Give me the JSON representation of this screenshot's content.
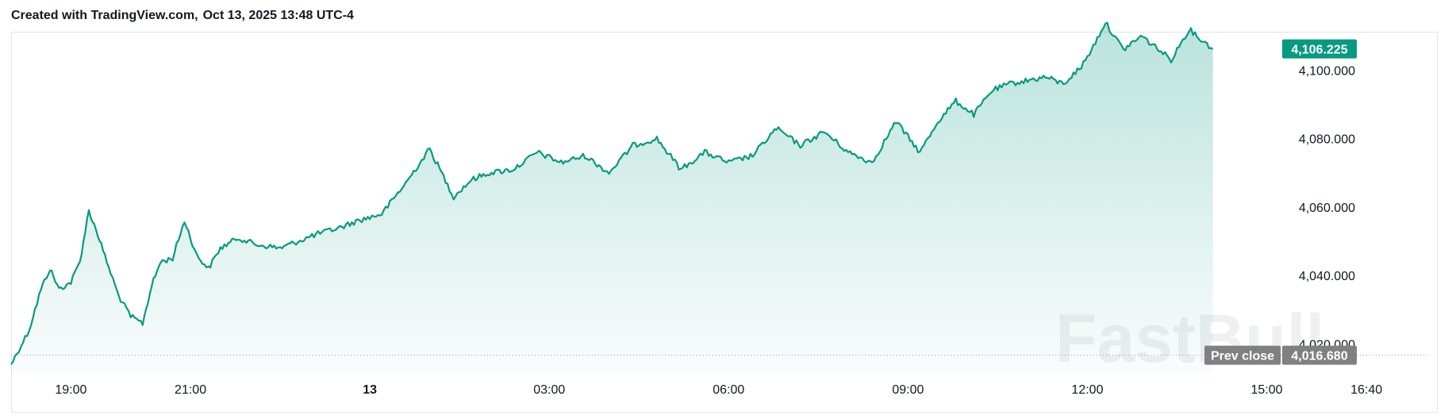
{
  "header": {
    "credit": "Created with TradingView.com,",
    "timestamp": "Oct 13, 2025 13:48 UTC-4"
  },
  "watermark": "FastBull",
  "chart_data": {
    "type": "area",
    "y_ticks": [
      "4,020.000",
      "4,040.000",
      "4,060.000",
      "4,080.000",
      "4,100.000"
    ],
    "y_tick_values": [
      4020,
      4040,
      4060,
      4080,
      4100
    ],
    "ylim": [
      4011.5,
      4111
    ],
    "x_ticks": [
      {
        "label": "19:00",
        "hour": 19,
        "bold": false
      },
      {
        "label": "21:00",
        "hour": 21,
        "bold": false
      },
      {
        "label": "13",
        "hour": 24,
        "bold": true
      },
      {
        "label": "03:00",
        "hour": 27,
        "bold": false
      },
      {
        "label": "06:00",
        "hour": 30,
        "bold": false
      },
      {
        "label": "09:00",
        "hour": 33,
        "bold": false
      },
      {
        "label": "12:00",
        "hour": 36,
        "bold": false
      },
      {
        "label": "15:00",
        "hour": 39,
        "bold": false
      },
      {
        "label": "16:40",
        "hour": 40.667,
        "bold": false
      }
    ],
    "xlim_hours": [
      18.0,
      41.7
    ],
    "last_price": {
      "label": "4,106.225",
      "value": 4106.225
    },
    "prev_close": {
      "label": "Prev close",
      "value_label": "4,016.680",
      "value": 4016.68
    },
    "colors": {
      "line": "#089981",
      "badge": "#089981",
      "prev_close_badge": "#808080",
      "prev_close_line": "#9598a1"
    },
    "series": [
      {
        "x": [
          18.0,
          18.3,
          18.5,
          18.65,
          18.8,
          19.0,
          19.15,
          19.3,
          19.45,
          19.6,
          19.8,
          20.0,
          20.2,
          20.35,
          20.5,
          20.7,
          20.9,
          21.1,
          21.3,
          21.5,
          21.8,
          22.1,
          22.5,
          22.8,
          23.1,
          23.5,
          23.8,
          24.2,
          24.6,
          25.0,
          25.4,
          25.7,
          26.0,
          26.4,
          26.8,
          27.2,
          27.6,
          28.0,
          28.4,
          28.8,
          29.2,
          29.6,
          30.0,
          30.4,
          30.8,
          31.2,
          31.6,
          32.0,
          32.4,
          32.8,
          33.2,
          33.5,
          33.8,
          34.1,
          34.4,
          34.7,
          35.0,
          35.3,
          35.6,
          35.9,
          36.1,
          36.3,
          36.6,
          36.9,
          37.2,
          37.4,
          37.7,
          37.9,
          38.1
        ],
        "y": [
          4014,
          4024,
          4036,
          4042,
          4036,
          4038,
          4044,
          4059,
          4052,
          4044,
          4034,
          4028,
          4026,
          4037,
          4044,
          4045,
          4056,
          4046,
          4042,
          4048,
          4051,
          4049,
          4048,
          4050,
          4052,
          4054,
          4056,
          4058,
          4067,
          4077,
          4063,
          4068,
          4070,
          4071,
          4076,
          4073,
          4075,
          4070,
          4078,
          4080,
          4071,
          4076,
          4073,
          4075,
          4083,
          4078,
          4082,
          4076,
          4073,
          4085,
          4076,
          4085,
          4091,
          4087,
          4094,
          4096,
          4097,
          4098,
          4096,
          4101,
          4107,
          4114,
          4106,
          4110,
          4106,
          4103,
          4112,
          4109,
          4106.225
        ]
      }
    ]
  }
}
